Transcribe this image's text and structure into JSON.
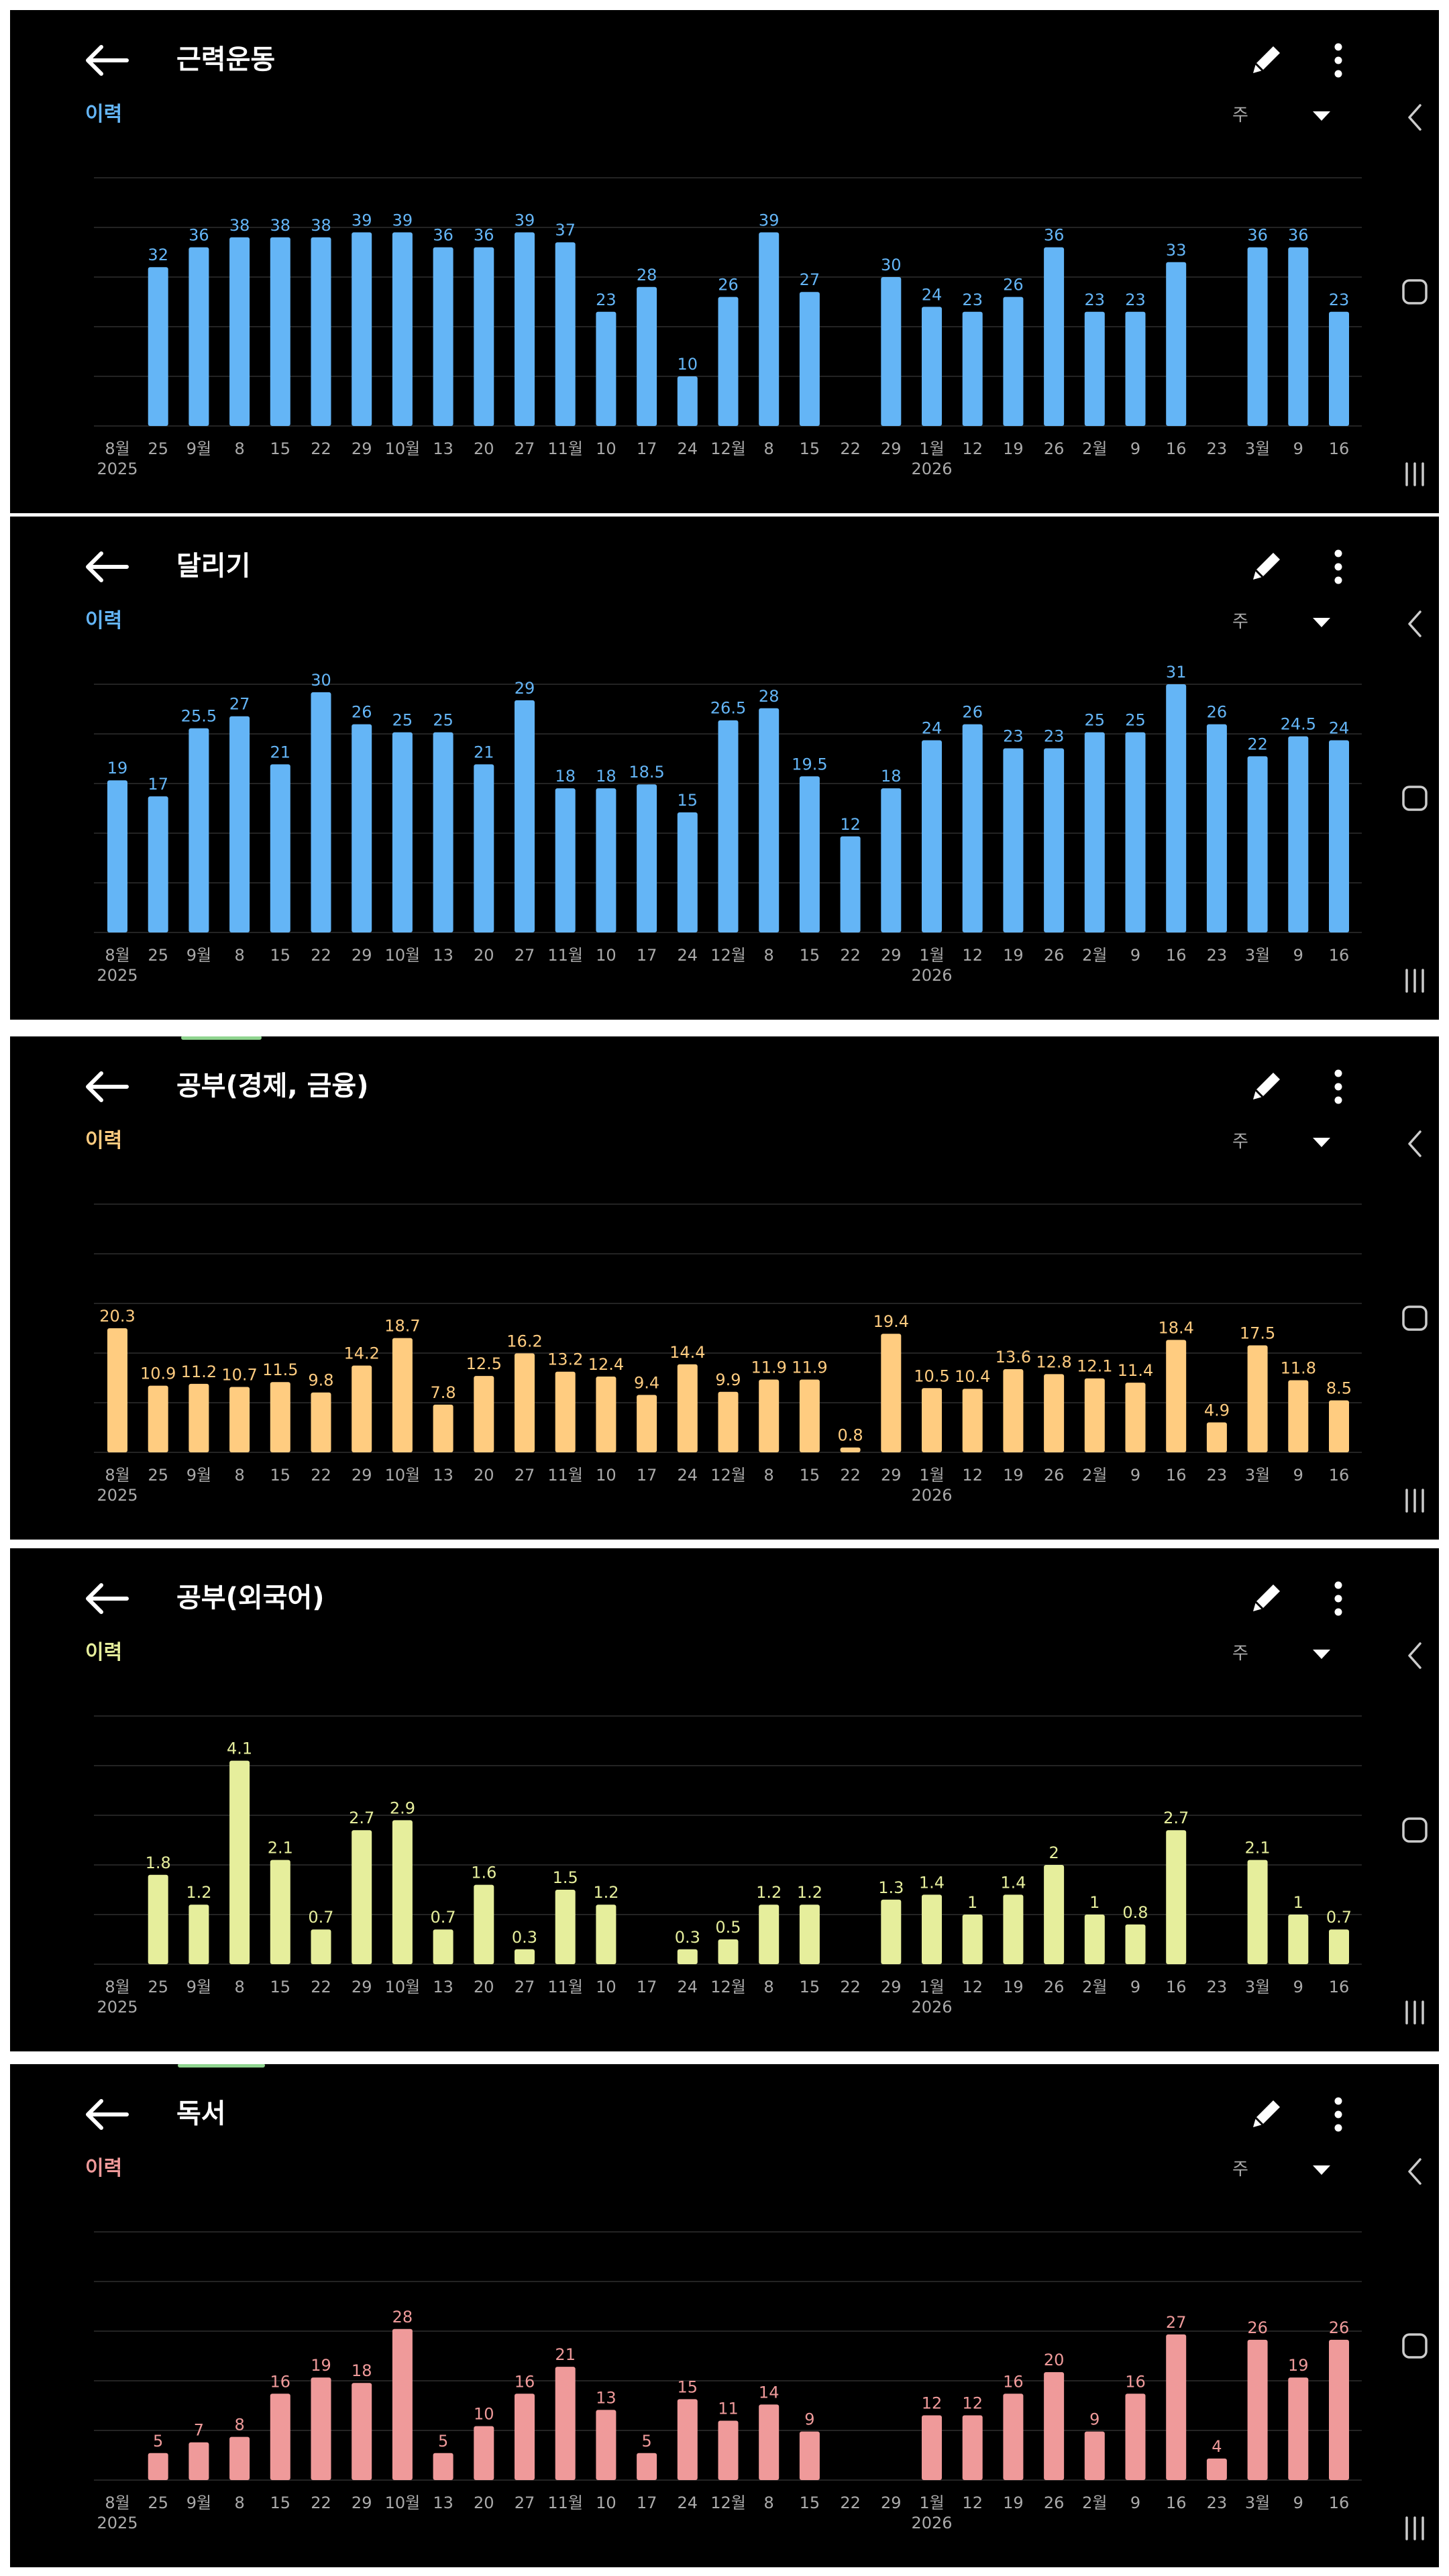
{
  "period_label": "주",
  "history_label": "이력",
  "x_ticks": [
    "8월",
    "25",
    "9월",
    "8",
    "15",
    "22",
    "29",
    "10월",
    "13",
    "20",
    "27",
    "11월",
    "10",
    "17",
    "24",
    "12월",
    "8",
    "15",
    "22",
    "29",
    "1월",
    "12",
    "19",
    "26",
    "2월",
    "9",
    "16",
    "23",
    "3월",
    "9",
    "16"
  ],
  "year_labels": [
    {
      "index": 0,
      "text": "2025"
    },
    {
      "index": 20,
      "text": "2026"
    }
  ],
  "panels": [
    {
      "title": "근력운동",
      "color": "#64b5f6",
      "values": [
        null,
        32,
        36,
        38,
        38,
        38,
        39,
        39,
        36,
        36,
        39,
        37,
        23,
        28,
        10,
        26,
        39,
        27,
        null,
        30,
        24,
        23,
        26,
        36,
        23,
        23,
        33,
        null,
        36,
        36,
        23
      ],
      "labels": [
        "",
        "32",
        "36",
        "38",
        "38",
        "38",
        "39",
        "39",
        "36",
        "36",
        "39",
        "37",
        "23",
        "28",
        "10",
        "26",
        "39",
        "27",
        "",
        "30",
        "24",
        "23",
        "26",
        "36",
        "23",
        "23",
        "33",
        "",
        "36",
        "36",
        "23"
      ],
      "ymax": 50
    },
    {
      "title": "달리기",
      "color": "#64b5f6",
      "values": [
        19,
        17,
        25.5,
        27,
        21,
        30,
        26,
        25,
        25,
        21,
        29,
        18,
        18,
        18.5,
        15,
        26.5,
        28,
        19.5,
        12,
        18,
        24,
        26,
        23,
        23,
        25,
        25,
        31,
        26,
        22,
        24.5,
        24
      ],
      "labels": [
        "19",
        "17",
        "25.5",
        "27",
        "21",
        "30",
        "26",
        "25",
        "25",
        "21",
        "29",
        "18",
        "18",
        "18.5",
        "15",
        "26.5",
        "28",
        "19.5",
        "12",
        "18",
        "24",
        "26",
        "23",
        "23",
        "25",
        "25",
        "31",
        "26",
        "22",
        "24.5",
        "24"
      ],
      "ymax": 31
    },
    {
      "title": "공부(경제, 금융)",
      "color": "#ffcc80",
      "values": [
        20.3,
        10.9,
        11.2,
        10.7,
        11.5,
        9.8,
        14.2,
        18.7,
        7.8,
        12.5,
        16.2,
        13.2,
        12.4,
        9.4,
        14.4,
        9.9,
        11.9,
        11.9,
        0.8,
        19.4,
        10.5,
        10.4,
        13.6,
        12.8,
        12.1,
        11.4,
        18.4,
        4.9,
        17.5,
        11.8,
        8.5
      ],
      "labels": [
        "20.3",
        "10.9",
        "11.2",
        "10.7",
        "11.5",
        "9.8",
        "14.2",
        "18.7",
        "7.8",
        "12.5",
        "16.2",
        "13.2",
        "12.4",
        "9.4",
        "14.4",
        "9.9",
        "11.9",
        "11.9",
        "0.8",
        "19.4",
        "10.5",
        "10.4",
        "13.6",
        "12.8",
        "12.1",
        "11.4",
        "18.4",
        "4.9",
        "17.5",
        "11.8",
        "8.5"
      ],
      "ymax": 40.6
    },
    {
      "title": "공부(외국어)",
      "color": "#e6ee9c",
      "values": [
        null,
        1.8,
        1.2,
        4.1,
        2.1,
        0.7,
        2.7,
        2.9,
        0.7,
        1.6,
        0.3,
        1.5,
        1.2,
        null,
        0.3,
        0.5,
        1.2,
        1.2,
        null,
        1.3,
        1.4,
        1,
        1.4,
        2,
        1,
        0.8,
        2.7,
        null,
        2.1,
        1,
        0.7
      ],
      "labels": [
        "",
        "1.8",
        "1.2",
        "4.1",
        "2.1",
        "0.7",
        "2.7",
        "2.9",
        "0.7",
        "1.6",
        "0.3",
        "1.5",
        "1.2",
        "",
        "0.3",
        "0.5",
        "1.2",
        "1.2",
        "",
        "1.3",
        "1.4",
        "1",
        "1.4",
        "2",
        "1",
        "0.8",
        "2.7",
        "",
        "2.1",
        "1",
        "0.7"
      ],
      "ymax": 5
    },
    {
      "title": "독서",
      "color": "#ef9a9a",
      "values": [
        null,
        5,
        7,
        8,
        16,
        19,
        18,
        28,
        5,
        10,
        16,
        21,
        13,
        5,
        15,
        11,
        14,
        9,
        null,
        null,
        12,
        12,
        16,
        20,
        9,
        16,
        27,
        4,
        26,
        19,
        26
      ],
      "labels": [
        "",
        "5",
        "7",
        "8",
        "16",
        "19",
        "18",
        "28",
        "5",
        "10",
        "16",
        "21",
        "13",
        "5",
        "15",
        "11",
        "14",
        "9",
        "",
        "",
        "12",
        "12",
        "16",
        "20",
        "9",
        "16",
        "27",
        "4",
        "26",
        "19",
        "26"
      ],
      "ymax": 46
    }
  ],
  "chart_data": [
    {
      "type": "bar",
      "title": "근력운동",
      "categories": [
        "8월",
        "25",
        "9월",
        "8",
        "15",
        "22",
        "29",
        "10월",
        "13",
        "20",
        "27",
        "11월",
        "10",
        "17",
        "24",
        "12월",
        "8",
        "15",
        "22",
        "29",
        "1월",
        "12",
        "19",
        "26",
        "2월",
        "9",
        "16",
        "23",
        "3월",
        "9",
        "16"
      ],
      "values": [
        null,
        32,
        36,
        38,
        38,
        38,
        39,
        39,
        36,
        36,
        39,
        37,
        23,
        28,
        10,
        26,
        39,
        27,
        null,
        30,
        24,
        23,
        26,
        36,
        23,
        23,
        33,
        null,
        36,
        36,
        23
      ]
    },
    {
      "type": "bar",
      "title": "달리기",
      "categories": [
        "8월",
        "25",
        "9월",
        "8",
        "15",
        "22",
        "29",
        "10월",
        "13",
        "20",
        "27",
        "11월",
        "10",
        "17",
        "24",
        "12월",
        "8",
        "15",
        "22",
        "29",
        "1월",
        "12",
        "19",
        "26",
        "2월",
        "9",
        "16",
        "23",
        "3월",
        "9",
        "16"
      ],
      "values": [
        19,
        17,
        25.5,
        27,
        21,
        30,
        26,
        25,
        25,
        21,
        29,
        18,
        18,
        18.5,
        15,
        26.5,
        28,
        19.5,
        12,
        18,
        24,
        26,
        23,
        23,
        25,
        25,
        31,
        26,
        22,
        24.5,
        24
      ]
    },
    {
      "type": "bar",
      "title": "공부(경제, 금융)",
      "categories": [
        "8월",
        "25",
        "9월",
        "8",
        "15",
        "22",
        "29",
        "10월",
        "13",
        "20",
        "27",
        "11월",
        "10",
        "17",
        "24",
        "12월",
        "8",
        "15",
        "22",
        "29",
        "1월",
        "12",
        "19",
        "26",
        "2월",
        "9",
        "16",
        "23",
        "3월",
        "9",
        "16"
      ],
      "values": [
        20.3,
        10.9,
        11.2,
        10.7,
        11.5,
        9.8,
        14.2,
        18.7,
        7.8,
        12.5,
        16.2,
        13.2,
        12.4,
        9.4,
        14.4,
        9.9,
        11.9,
        11.9,
        0.8,
        19.4,
        10.5,
        10.4,
        13.6,
        12.8,
        12.1,
        11.4,
        18.4,
        4.9,
        17.5,
        11.8,
        8.5
      ]
    },
    {
      "type": "bar",
      "title": "공부(외국어)",
      "categories": [
        "8월",
        "25",
        "9월",
        "8",
        "15",
        "22",
        "29",
        "10월",
        "13",
        "20",
        "27",
        "11월",
        "10",
        "17",
        "24",
        "12월",
        "8",
        "15",
        "22",
        "29",
        "1월",
        "12",
        "19",
        "26",
        "2월",
        "9",
        "16",
        "23",
        "3월",
        "9",
        "16"
      ],
      "values": [
        null,
        1.8,
        1.2,
        4.1,
        2.1,
        0.7,
        2.7,
        2.9,
        0.7,
        1.6,
        0.3,
        1.5,
        1.2,
        null,
        0.3,
        0.5,
        1.2,
        1.2,
        null,
        1.3,
        1.4,
        1,
        1.4,
        2,
        1,
        0.8,
        2.7,
        null,
        2.1,
        1,
        0.7
      ]
    },
    {
      "type": "bar",
      "title": "독서",
      "categories": [
        "8월",
        "25",
        "9월",
        "8",
        "15",
        "22",
        "29",
        "10월",
        "13",
        "20",
        "27",
        "11월",
        "10",
        "17",
        "24",
        "12월",
        "8",
        "15",
        "22",
        "29",
        "1월",
        "12",
        "19",
        "26",
        "2월",
        "9",
        "16",
        "23",
        "3월",
        "9",
        "16"
      ],
      "values": [
        null,
        5,
        7,
        8,
        16,
        19,
        18,
        28,
        5,
        10,
        16,
        21,
        13,
        5,
        15,
        11,
        14,
        9,
        null,
        null,
        12,
        12,
        16,
        20,
        9,
        16,
        27,
        4,
        26,
        19,
        26
      ]
    }
  ]
}
